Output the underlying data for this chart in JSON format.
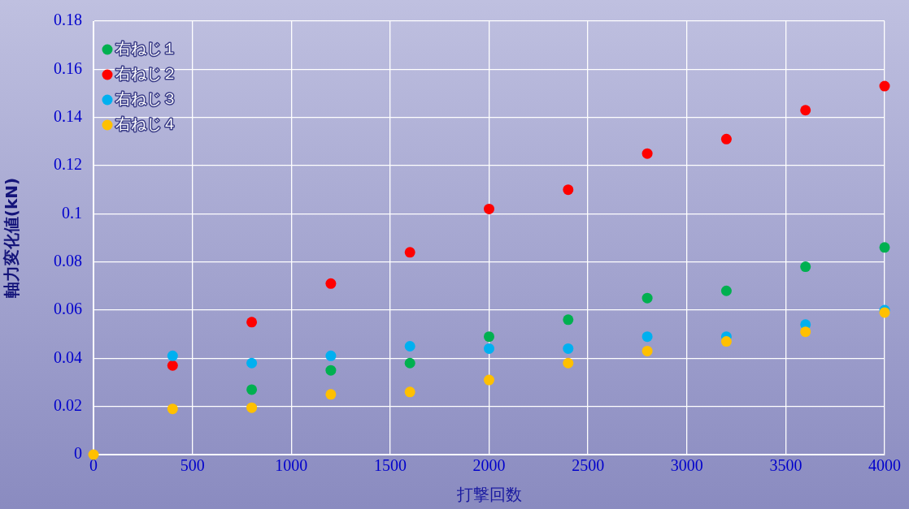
{
  "chart_data": {
    "type": "scatter",
    "xlabel": "打撃回数",
    "ylabel": "軸力変化値(kN)",
    "x": [
      0,
      400,
      800,
      1200,
      1600,
      2000,
      2400,
      2800,
      3200,
      3600,
      4000
    ],
    "series": [
      {
        "name": "右ねじ１",
        "color": "#00b050",
        "values": [
          null,
          null,
          0.027,
          0.035,
          0.038,
          0.049,
          0.056,
          0.065,
          0.068,
          0.078,
          0.086
        ]
      },
      {
        "name": "右ねじ２",
        "color": "#ff0000",
        "values": [
          null,
          0.037,
          0.055,
          0.071,
          0.084,
          0.102,
          0.11,
          0.125,
          0.131,
          0.143,
          0.153
        ]
      },
      {
        "name": "右ねじ３",
        "color": "#00b0f0",
        "values": [
          null,
          0.041,
          0.038,
          0.041,
          0.045,
          0.044,
          0.044,
          0.049,
          0.049,
          0.054,
          0.06
        ]
      },
      {
        "name": "右ねじ４",
        "color": "#ffc000",
        "values": [
          0,
          0.019,
          0.0195,
          0.025,
          0.026,
          0.031,
          0.038,
          0.043,
          0.047,
          0.051,
          0.059
        ]
      }
    ],
    "xlim": [
      0,
      4000
    ],
    "xticks": [
      0,
      500,
      1000,
      1500,
      2000,
      2500,
      3000,
      3500,
      4000
    ],
    "ylim": [
      0,
      0.18
    ],
    "yticks": [
      0,
      0.02,
      0.04,
      0.06,
      0.08,
      0.1,
      0.12,
      0.14,
      0.16,
      0.18
    ],
    "grid": true,
    "legend": "top left",
    "marker": "circle"
  }
}
